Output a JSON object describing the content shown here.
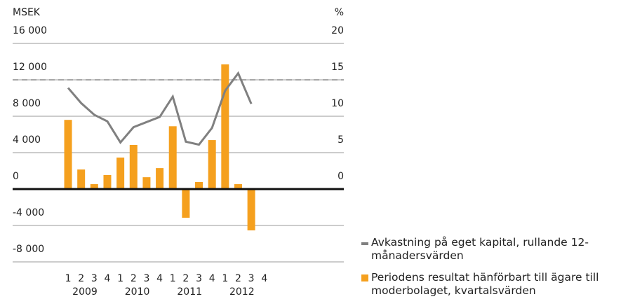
{
  "chart_data": {
    "type": "bar",
    "y_unit": "MSEK",
    "y2_unit": "%",
    "categories": [
      "1",
      "2",
      "3",
      "4",
      "1",
      "2",
      "3",
      "4",
      "1",
      "2",
      "3",
      "4",
      "1",
      "2",
      "3",
      "4"
    ],
    "years": [
      "2009",
      "2010",
      "2011",
      "2012"
    ],
    "ylim": [
      -8000,
      16000
    ],
    "yticks": [
      {
        "value": 16000,
        "label": "16 000"
      },
      {
        "value": 12000,
        "label": "12 000"
      },
      {
        "value": 8000,
        "label": "8 000"
      },
      {
        "value": 4000,
        "label": "4 000"
      },
      0,
      {
        "value": -4000,
        "label": "-4 000"
      },
      {
        "value": -8000,
        "label": "-8 000"
      }
    ],
    "y2lim": [
      -10,
      20
    ],
    "y2ticks": [
      20,
      15,
      10,
      5,
      0
    ],
    "grid": true,
    "reference_line": {
      "value": 15,
      "axis": "y2",
      "color": "#a6a6a6"
    },
    "series": [
      {
        "name": "Avkastning på eget kapital, rullande 12-månadersvärden",
        "type": "line",
        "axis": "y2",
        "color": "#808080",
        "values": [
          13.9,
          11.8,
          10.2,
          9.3,
          6.4,
          8.5,
          9.2,
          9.9,
          12.7,
          6.5,
          6.1,
          8.4,
          13.5,
          15.9,
          11.7,
          null
        ]
      },
      {
        "name": "Periodens resultat hänförbart till ägare till moderbolaget, kvartalsvärden",
        "type": "bar",
        "axis": "y",
        "color": "#f5a01e",
        "values": [
          7600,
          2150,
          540,
          1540,
          3460,
          4850,
          1300,
          2300,
          6900,
          -3150,
          770,
          5380,
          13700,
          540,
          -4540,
          null
        ]
      }
    ]
  }
}
